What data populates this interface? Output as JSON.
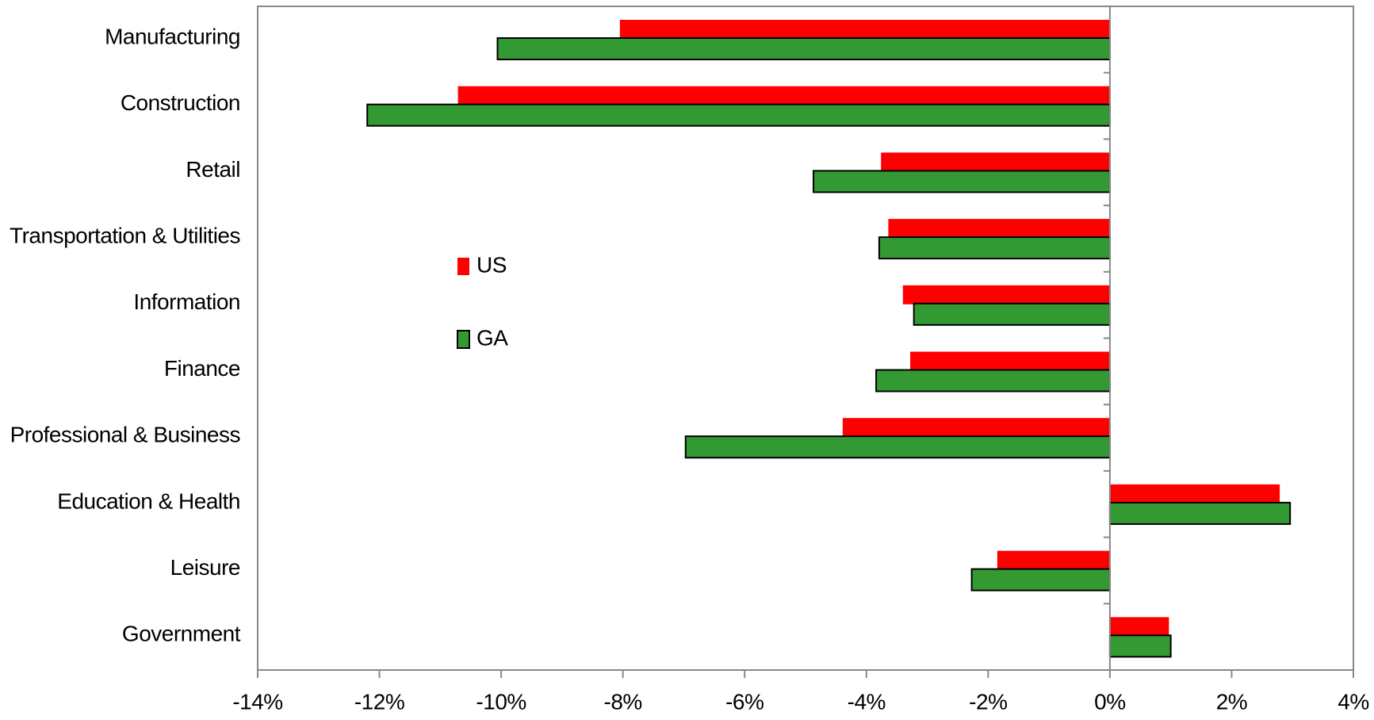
{
  "chart_data": {
    "type": "hbar",
    "categories": [
      "Manufacturing",
      "Construction",
      "Retail",
      "Transportation & Utilities",
      "Information",
      "Finance",
      "Professional & Business",
      "Education & Health",
      "Leisure",
      "Government"
    ],
    "series": [
      {
        "name": "US",
        "color": "#ff0000",
        "values": [
          -8.05,
          -10.71,
          -3.76,
          -3.64,
          -3.4,
          -3.28,
          -4.39,
          2.79,
          -1.85,
          0.97
        ]
      },
      {
        "name": "GA",
        "color": "#339933",
        "values": [
          -10.06,
          -12.2,
          -4.87,
          -3.79,
          -3.22,
          -3.84,
          -6.97,
          2.96,
          -2.27,
          1.0
        ]
      }
    ],
    "xlim": [
      -14,
      4
    ],
    "xticks": [
      {
        "value": -14,
        "label": "-14%"
      },
      {
        "value": -12,
        "label": "-12%"
      },
      {
        "value": -10,
        "label": "-10%"
      },
      {
        "value": -8,
        "label": "-8%"
      },
      {
        "value": -6,
        "label": "-6%"
      },
      {
        "value": -4,
        "label": "-4%"
      },
      {
        "value": -2,
        "label": "-2%"
      },
      {
        "value": 0,
        "label": "0%"
      },
      {
        "value": 2,
        "label": "2%"
      },
      {
        "value": 4,
        "label": "4%"
      }
    ]
  }
}
